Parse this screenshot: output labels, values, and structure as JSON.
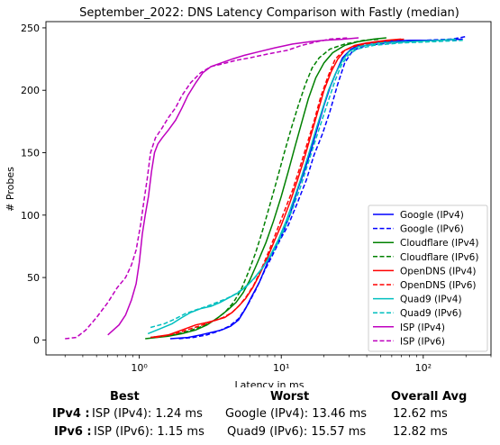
{
  "chart_data": {
    "type": "line",
    "title": "September_2022: DNS Latency Comparison with Fastly (median)",
    "xlabel": "Latency in ms",
    "ylabel": "# Probes",
    "xscale": "log",
    "xlim": [
      0.22,
      300
    ],
    "ylim": [
      -12,
      255
    ],
    "x_tick_labels": [
      "10⁰",
      "10¹",
      "10²"
    ],
    "x_tick_values": [
      1,
      10,
      100
    ],
    "y_ticks": [
      0,
      50,
      100,
      150,
      200,
      250
    ],
    "grid": false,
    "legend_position": "lower-right",
    "series": [
      {
        "name": "Google (IPv4)",
        "color": "#0000ff",
        "dash": "solid",
        "points": [
          [
            1.65,
            1
          ],
          [
            2.2,
            2
          ],
          [
            2.7,
            4
          ],
          [
            3.2,
            6
          ],
          [
            3.8,
            8
          ],
          [
            4.4,
            11
          ],
          [
            5.0,
            16
          ],
          [
            5.6,
            25
          ],
          [
            6.2,
            35
          ],
          [
            7.0,
            46
          ],
          [
            8.0,
            62
          ],
          [
            9.0,
            74
          ],
          [
            10.0,
            83
          ],
          [
            11.5,
            100
          ],
          [
            13.0,
            120
          ],
          [
            14.5,
            135
          ],
          [
            16.0,
            150
          ],
          [
            18.0,
            170
          ],
          [
            20.0,
            188
          ],
          [
            22.0,
            202
          ],
          [
            24.5,
            215
          ],
          [
            27.0,
            226
          ],
          [
            31.0,
            233
          ],
          [
            37.0,
            237
          ],
          [
            50.0,
            239
          ],
          [
            80.0,
            240
          ],
          [
            130.0,
            240
          ],
          [
            190.0,
            241
          ]
        ]
      },
      {
        "name": "Google (IPv6)",
        "color": "#0000ff",
        "dash": "dashed",
        "points": [
          [
            1.9,
            1
          ],
          [
            2.4,
            2
          ],
          [
            3.0,
            4
          ],
          [
            3.6,
            7
          ],
          [
            4.3,
            11
          ],
          [
            5.0,
            17
          ],
          [
            5.8,
            28
          ],
          [
            6.6,
            40
          ],
          [
            7.6,
            55
          ],
          [
            8.6,
            67
          ],
          [
            9.8,
            80
          ],
          [
            11.2,
            92
          ],
          [
            13.0,
            110
          ],
          [
            15.0,
            128
          ],
          [
            17.0,
            148
          ],
          [
            19.5,
            165
          ],
          [
            22.0,
            183
          ],
          [
            25.0,
            205
          ],
          [
            28.0,
            222
          ],
          [
            32.0,
            232
          ],
          [
            40.0,
            236
          ],
          [
            60.0,
            238
          ],
          [
            100.0,
            240
          ],
          [
            160.0,
            241
          ],
          [
            200.0,
            243
          ]
        ]
      },
      {
        "name": "Cloudflare (IPv4)",
        "color": "#008000",
        "dash": "solid",
        "points": [
          [
            1.1,
            1
          ],
          [
            1.6,
            3
          ],
          [
            2.0,
            5
          ],
          [
            2.5,
            8
          ],
          [
            3.0,
            12
          ],
          [
            3.6,
            18
          ],
          [
            4.2,
            24
          ],
          [
            4.8,
            30
          ],
          [
            5.4,
            38
          ],
          [
            6.0,
            48
          ],
          [
            6.8,
            62
          ],
          [
            7.8,
            78
          ],
          [
            8.8,
            95
          ],
          [
            10.0,
            115
          ],
          [
            11.2,
            135
          ],
          [
            12.5,
            155
          ],
          [
            14.0,
            175
          ],
          [
            15.5,
            193
          ],
          [
            17.5,
            210
          ],
          [
            20.0,
            222
          ],
          [
            23.0,
            230
          ],
          [
            28.0,
            236
          ],
          [
            35.0,
            239
          ],
          [
            45.0,
            241
          ],
          [
            55.0,
            242
          ]
        ]
      },
      {
        "name": "Cloudflare (IPv6)",
        "color": "#008000",
        "dash": "dashed",
        "points": [
          [
            1.2,
            2
          ],
          [
            1.7,
            4
          ],
          [
            2.2,
            7
          ],
          [
            2.8,
            11
          ],
          [
            3.4,
            16
          ],
          [
            4.0,
            22
          ],
          [
            4.6,
            30
          ],
          [
            5.2,
            40
          ],
          [
            5.9,
            55
          ],
          [
            6.6,
            70
          ],
          [
            7.4,
            88
          ],
          [
            8.3,
            108
          ],
          [
            9.3,
            128
          ],
          [
            10.5,
            150
          ],
          [
            11.8,
            170
          ],
          [
            13.2,
            188
          ],
          [
            14.8,
            205
          ],
          [
            16.5,
            218
          ],
          [
            18.5,
            226
          ],
          [
            22.0,
            233
          ],
          [
            28.0,
            237
          ],
          [
            38.0,
            240
          ],
          [
            50.0,
            241
          ]
        ]
      },
      {
        "name": "OpenDNS (IPv4)",
        "color": "#ff0000",
        "dash": "solid",
        "points": [
          [
            1.2,
            2
          ],
          [
            1.6,
            4
          ],
          [
            2.0,
            8
          ],
          [
            2.5,
            12
          ],
          [
            3.0,
            14
          ],
          [
            3.5,
            16
          ],
          [
            4.0,
            18
          ],
          [
            4.5,
            22
          ],
          [
            5.0,
            27
          ],
          [
            5.6,
            33
          ],
          [
            6.3,
            42
          ],
          [
            7.0,
            52
          ],
          [
            8.0,
            66
          ],
          [
            9.0,
            80
          ],
          [
            10.0,
            92
          ],
          [
            11.5,
            110
          ],
          [
            13.0,
            128
          ],
          [
            14.5,
            145
          ],
          [
            16.0,
            162
          ],
          [
            18.0,
            182
          ],
          [
            20.0,
            200
          ],
          [
            22.5,
            215
          ],
          [
            25.0,
            225
          ],
          [
            28.0,
            232
          ],
          [
            33.0,
            236
          ],
          [
            40.0,
            238
          ],
          [
            55.0,
            240
          ],
          [
            70.0,
            241
          ]
        ]
      },
      {
        "name": "OpenDNS (IPv6)",
        "color": "#ff0000",
        "dash": "dashed",
        "points": [
          [
            1.3,
            2
          ],
          [
            1.8,
            5
          ],
          [
            2.3,
            9
          ],
          [
            2.8,
            12
          ],
          [
            3.3,
            15
          ],
          [
            3.9,
            18
          ],
          [
            4.5,
            22
          ],
          [
            5.1,
            28
          ],
          [
            5.7,
            35
          ],
          [
            6.4,
            44
          ],
          [
            7.2,
            56
          ],
          [
            8.1,
            70
          ],
          [
            9.2,
            86
          ],
          [
            10.5,
            103
          ],
          [
            12.0,
            120
          ],
          [
            13.5,
            138
          ],
          [
            15.0,
            155
          ],
          [
            17.0,
            175
          ],
          [
            19.0,
            195
          ],
          [
            21.5,
            212
          ],
          [
            24.0,
            225
          ],
          [
            27.0,
            231
          ],
          [
            32.0,
            235
          ],
          [
            45.0,
            238
          ],
          [
            60.0,
            240
          ],
          [
            75.0,
            241
          ]
        ]
      },
      {
        "name": "Quad9 (IPv4)",
        "color": "#00bfbf",
        "dash": "solid",
        "points": [
          [
            1.15,
            5
          ],
          [
            1.4,
            9
          ],
          [
            1.7,
            13
          ],
          [
            2.0,
            18
          ],
          [
            2.3,
            22
          ],
          [
            2.7,
            25
          ],
          [
            3.2,
            27
          ],
          [
            3.7,
            30
          ],
          [
            4.3,
            34
          ],
          [
            5.0,
            38
          ],
          [
            5.7,
            43
          ],
          [
            6.5,
            50
          ],
          [
            7.4,
            58
          ],
          [
            8.4,
            68
          ],
          [
            9.5,
            80
          ],
          [
            10.8,
            95
          ],
          [
            12.2,
            112
          ],
          [
            13.8,
            130
          ],
          [
            15.5,
            148
          ],
          [
            17.5,
            168
          ],
          [
            19.5,
            185
          ],
          [
            21.5,
            200
          ],
          [
            24.0,
            213
          ],
          [
            27.0,
            224
          ],
          [
            30.0,
            231
          ],
          [
            35.0,
            235
          ],
          [
            50.0,
            238
          ],
          [
            80.0,
            239
          ],
          [
            130.0,
            240
          ],
          [
            170.0,
            241
          ]
        ]
      },
      {
        "name": "Quad9 (IPv6)",
        "color": "#00bfbf",
        "dash": "dashed",
        "points": [
          [
            1.2,
            10
          ],
          [
            1.5,
            13
          ],
          [
            1.8,
            17
          ],
          [
            2.1,
            21
          ],
          [
            2.5,
            24
          ],
          [
            3.0,
            27
          ],
          [
            3.5,
            30
          ],
          [
            4.1,
            33
          ],
          [
            4.8,
            37
          ],
          [
            5.5,
            42
          ],
          [
            6.3,
            48
          ],
          [
            7.2,
            56
          ],
          [
            8.2,
            65
          ],
          [
            9.3,
            76
          ],
          [
            10.6,
            90
          ],
          [
            12.0,
            105
          ],
          [
            13.6,
            122
          ],
          [
            15.3,
            140
          ],
          [
            17.2,
            158
          ],
          [
            19.2,
            175
          ],
          [
            21.5,
            192
          ],
          [
            24.0,
            208
          ],
          [
            26.5,
            220
          ],
          [
            29.5,
            228
          ],
          [
            34.0,
            233
          ],
          [
            45.0,
            236
          ],
          [
            70.0,
            238
          ],
          [
            120.0,
            239
          ],
          [
            190.0,
            240
          ]
        ]
      },
      {
        "name": "ISP (IPv4)",
        "color": "#bf00bf",
        "dash": "solid",
        "points": [
          [
            0.6,
            4
          ],
          [
            0.72,
            12
          ],
          [
            0.8,
            20
          ],
          [
            0.88,
            32
          ],
          [
            0.95,
            45
          ],
          [
            1.0,
            62
          ],
          [
            1.05,
            85
          ],
          [
            1.1,
            100
          ],
          [
            1.16,
            115
          ],
          [
            1.22,
            135
          ],
          [
            1.28,
            150
          ],
          [
            1.35,
            157
          ],
          [
            1.45,
            162
          ],
          [
            1.6,
            168
          ],
          [
            1.8,
            176
          ],
          [
            2.0,
            186
          ],
          [
            2.2,
            196
          ],
          [
            2.5,
            206
          ],
          [
            2.8,
            214
          ],
          [
            3.2,
            219
          ],
          [
            3.8,
            222
          ],
          [
            4.5,
            225
          ],
          [
            5.5,
            228
          ],
          [
            7.0,
            231
          ],
          [
            9.0,
            234
          ],
          [
            12.0,
            237
          ],
          [
            16.0,
            239
          ],
          [
            20.0,
            240
          ],
          [
            28.0,
            241
          ],
          [
            35.0,
            242
          ]
        ]
      },
      {
        "name": "ISP (IPv6)",
        "color": "#bf00bf",
        "dash": "dashed",
        "points": [
          [
            0.3,
            1
          ],
          [
            0.36,
            2
          ],
          [
            0.42,
            8
          ],
          [
            0.5,
            18
          ],
          [
            0.6,
            30
          ],
          [
            0.7,
            42
          ],
          [
            0.8,
            50
          ],
          [
            0.88,
            60
          ],
          [
            0.95,
            72
          ],
          [
            1.02,
            92
          ],
          [
            1.08,
            112
          ],
          [
            1.14,
            130
          ],
          [
            1.2,
            150
          ],
          [
            1.3,
            162
          ],
          [
            1.45,
            170
          ],
          [
            1.6,
            178
          ],
          [
            1.8,
            186
          ],
          [
            2.0,
            196
          ],
          [
            2.3,
            206
          ],
          [
            2.7,
            214
          ],
          [
            3.2,
            219
          ],
          [
            3.8,
            221
          ],
          [
            4.8,
            224
          ],
          [
            6.0,
            226
          ],
          [
            8.0,
            229
          ],
          [
            11.0,
            232
          ],
          [
            14.0,
            236
          ],
          [
            18.0,
            239
          ],
          [
            22.0,
            241
          ],
          [
            30.0,
            242
          ]
        ]
      }
    ]
  },
  "stats": {
    "headers": {
      "best": "Best",
      "worst": "Worst",
      "avg": "Overall Avg"
    },
    "rows": [
      {
        "label": "IPv4 :",
        "best": "ISP (IPv4): 1.24 ms",
        "worst": "Google (IPv4): 13.46 ms",
        "avg": "12.62 ms"
      },
      {
        "label": "IPv6 :",
        "best": "ISP (IPv6): 1.15 ms",
        "worst": "Quad9 (IPv6): 15.57 ms",
        "avg": "12.82 ms"
      }
    ]
  }
}
